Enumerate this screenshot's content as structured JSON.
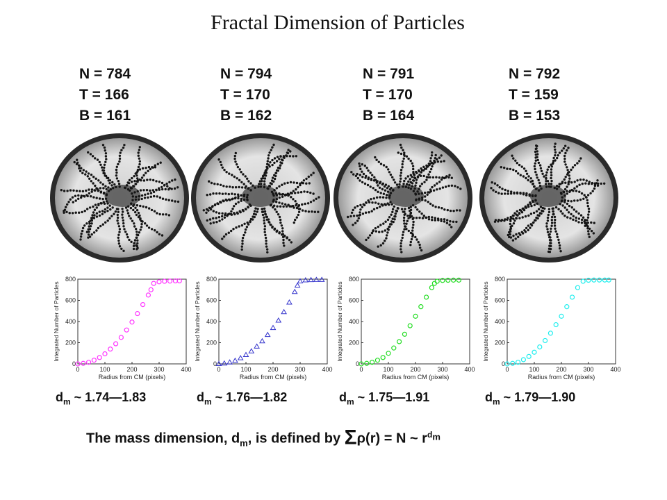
{
  "title": "Fractal Dimension of Particles",
  "panels": [
    {
      "n": "N = 784",
      "t": "T = 166",
      "b": "B = 161",
      "dm_prefix": "d",
      "dm_sub": "m",
      "dm_range": " ~ 1.74—1.83",
      "color": "#ff33ff"
    },
    {
      "n": "N = 794",
      "t": "T = 170",
      "b": "B = 162",
      "dm_prefix": "d",
      "dm_sub": "m",
      "dm_range": " ~ 1.76—1.82",
      "color": "#3333cc"
    },
    {
      "n": "N = 791",
      "t": "T = 170",
      "b": "B = 164",
      "dm_prefix": "d",
      "dm_sub": "m",
      "dm_range": " ~ 1.75—1.91",
      "color": "#22dd22"
    },
    {
      "n": "N = 792",
      "t": "T = 159",
      "b": "B = 153",
      "dm_prefix": "d",
      "dm_sub": "m",
      "dm_range": " ~ 1.79—1.90",
      "color": "#22eeee"
    }
  ],
  "definition": {
    "part1": "The mass dimension, d",
    "sub1": "m",
    "part2": ", is defined by ",
    "sigma": "Σ",
    "part3": "ρ(r) = N ~ r",
    "sup": "d",
    "supsub": "m"
  },
  "chart_data": [
    {
      "type": "scatter",
      "xlabel": "Radius from CM (pixels)",
      "ylabel": "Integrated Number of Particles",
      "xlim": [
        0,
        400
      ],
      "ylim": [
        0,
        800
      ],
      "xticks": [
        "0",
        "100",
        "200",
        "300",
        "400"
      ],
      "yticks": [
        "0",
        "200",
        "400",
        "600",
        "800"
      ],
      "x": [
        0,
        20,
        40,
        60,
        80,
        100,
        120,
        140,
        160,
        180,
        200,
        220,
        240,
        260,
        270,
        280,
        300,
        320,
        340,
        360,
        375
      ],
      "y": [
        0,
        5,
        15,
        35,
        60,
        95,
        140,
        190,
        250,
        320,
        395,
        475,
        560,
        650,
        700,
        760,
        775,
        780,
        782,
        784,
        784
      ],
      "color": "#ff33ff"
    },
    {
      "type": "scatter",
      "xlabel": "Radius from CM (pixels)",
      "ylabel": "Integrated Number of Particles",
      "xlim": [
        0,
        400
      ],
      "ylim": [
        0,
        800
      ],
      "xticks": [
        "0",
        "100",
        "200",
        "300",
        "400"
      ],
      "yticks": [
        "0",
        "200",
        "400",
        "600",
        "800"
      ],
      "x": [
        0,
        20,
        40,
        60,
        80,
        100,
        120,
        140,
        160,
        180,
        200,
        220,
        240,
        260,
        280,
        290,
        300,
        320,
        340,
        360,
        380
      ],
      "y": [
        0,
        5,
        15,
        30,
        55,
        85,
        120,
        165,
        215,
        275,
        340,
        410,
        490,
        580,
        680,
        740,
        780,
        790,
        793,
        794,
        794
      ],
      "color": "#3333cc"
    },
    {
      "type": "scatter",
      "xlabel": "Radius from CM (pixels)",
      "ylabel": "Integrated Number of Particles",
      "xlim": [
        0,
        400
      ],
      "ylim": [
        0,
        800
      ],
      "xticks": [
        "0",
        "100",
        "200",
        "300",
        "400"
      ],
      "yticks": [
        "0",
        "200",
        "400",
        "600",
        "800"
      ],
      "x": [
        0,
        20,
        40,
        60,
        80,
        100,
        120,
        140,
        160,
        180,
        200,
        220,
        240,
        260,
        270,
        280,
        300,
        320,
        340,
        360
      ],
      "y": [
        0,
        5,
        15,
        35,
        60,
        100,
        150,
        210,
        280,
        360,
        450,
        540,
        630,
        720,
        760,
        780,
        788,
        790,
        791,
        791
      ],
      "color": "#22dd22"
    },
    {
      "type": "scatter",
      "xlabel": "Radius from CM (pixels)",
      "ylabel": "Integrated Number of Particles",
      "xlim": [
        0,
        400
      ],
      "ylim": [
        0,
        800
      ],
      "xticks": [
        "0",
        "100",
        "200",
        "300",
        "400"
      ],
      "yticks": [
        "0",
        "200",
        "400",
        "600",
        "800"
      ],
      "x": [
        0,
        20,
        40,
        60,
        80,
        100,
        120,
        140,
        160,
        180,
        200,
        220,
        240,
        260,
        280,
        300,
        320,
        340,
        360,
        375
      ],
      "y": [
        0,
        5,
        15,
        40,
        70,
        110,
        160,
        220,
        290,
        370,
        450,
        540,
        630,
        720,
        780,
        790,
        792,
        792,
        792,
        792
      ],
      "color": "#22eeee"
    }
  ]
}
